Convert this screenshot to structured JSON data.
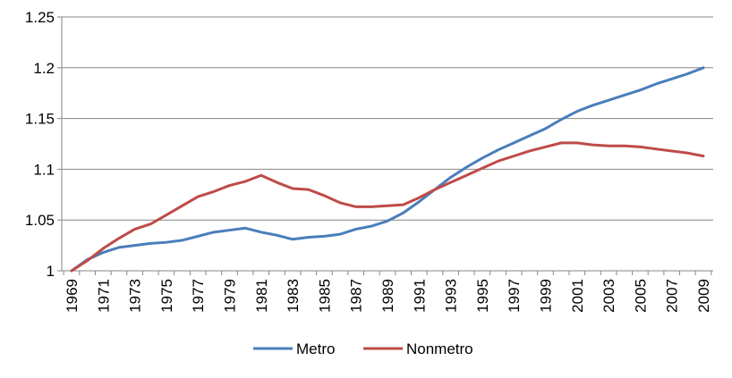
{
  "chart_data": {
    "type": "line",
    "title": "",
    "xlabel": "",
    "ylabel": "",
    "x": [
      1969,
      1970,
      1971,
      1972,
      1973,
      1974,
      1975,
      1976,
      1977,
      1978,
      1979,
      1980,
      1981,
      1982,
      1983,
      1984,
      1985,
      1986,
      1987,
      1988,
      1989,
      1990,
      1991,
      1992,
      1993,
      1994,
      1995,
      1996,
      1997,
      1998,
      1999,
      2000,
      2001,
      2002,
      2003,
      2004,
      2005,
      2006,
      2007,
      2008,
      2009
    ],
    "x_tick_labels": [
      "1969",
      "1971",
      "1973",
      "1975",
      "1977",
      "1979",
      "1981",
      "1983",
      "1985",
      "1987",
      "1989",
      "1991",
      "1993",
      "1995",
      "1997",
      "1999",
      "2001",
      "2003",
      "2005",
      "2007",
      "2009"
    ],
    "ylim": [
      1,
      1.25
    ],
    "y_ticks": [
      1,
      1.05,
      1.1,
      1.15,
      1.2,
      1.25
    ],
    "y_tick_labels": [
      "1",
      "1.05",
      "1.1",
      "1.15",
      "1.2",
      "1.25"
    ],
    "grid": "horizontal",
    "legend_position": "bottom",
    "series": [
      {
        "name": "Metro",
        "color": "#4a7ebb",
        "values": [
          1.0,
          1.011,
          1.018,
          1.023,
          1.025,
          1.027,
          1.028,
          1.03,
          1.034,
          1.038,
          1.04,
          1.042,
          1.038,
          1.035,
          1.031,
          1.033,
          1.034,
          1.036,
          1.041,
          1.044,
          1.049,
          1.057,
          1.068,
          1.08,
          1.092,
          1.102,
          1.111,
          1.119,
          1.126,
          1.133,
          1.14,
          1.149,
          1.157,
          1.163,
          1.168,
          1.173,
          1.178,
          1.184,
          1.189,
          1.194,
          1.2
        ]
      },
      {
        "name": "Nonmetro",
        "color": "#be4b48",
        "values": [
          1.0,
          1.01,
          1.022,
          1.032,
          1.041,
          1.046,
          1.055,
          1.064,
          1.073,
          1.078,
          1.084,
          1.088,
          1.094,
          1.087,
          1.081,
          1.08,
          1.074,
          1.067,
          1.063,
          1.063,
          1.064,
          1.065,
          1.072,
          1.08,
          1.087,
          1.094,
          1.101,
          1.108,
          1.113,
          1.118,
          1.122,
          1.126,
          1.126,
          1.124,
          1.123,
          1.123,
          1.122,
          1.12,
          1.118,
          1.116,
          1.113
        ]
      }
    ]
  }
}
